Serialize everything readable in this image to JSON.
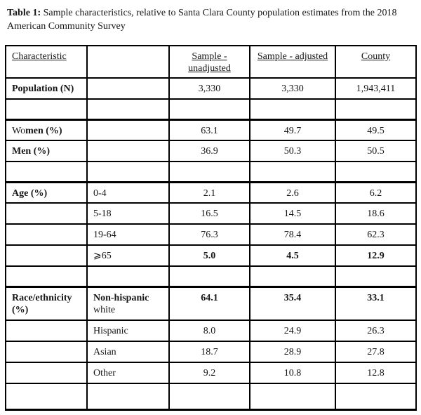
{
  "caption": {
    "label": "Table 1:",
    "text": " Sample characteristics, relative to Santa Clara County population estimates from the 2018 American Community Survey"
  },
  "table": {
    "columns": [
      "Characteristic",
      "",
      "Sample - unadjusted",
      "Sample - adjusted",
      "County"
    ],
    "rows": [
      {
        "kind": "header",
        "cells": [
          {
            "u": true,
            "segs": [
              {
                "t": "Characteristic"
              }
            ]
          },
          {
            "segs": []
          },
          {
            "u": true,
            "segs": [
              {
                "t": "Sample -"
              },
              {
                "t": "unadjusted",
                "br": true
              }
            ]
          },
          {
            "u": true,
            "segs": [
              {
                "t": "Sample - adjusted"
              }
            ]
          },
          {
            "u": true,
            "segs": [
              {
                "t": "County"
              }
            ]
          }
        ]
      },
      {
        "kind": "data",
        "cells": [
          {
            "segs": [
              {
                "t": "Population (N)",
                "b": true
              }
            ]
          },
          {
            "segs": []
          },
          {
            "segs": [
              {
                "t": "3,330"
              }
            ]
          },
          {
            "segs": [
              {
                "t": "3,330"
              }
            ]
          },
          {
            "segs": [
              {
                "t": "1,943,411"
              }
            ]
          }
        ]
      },
      {
        "kind": "blank"
      },
      {
        "kind": "data",
        "section": true,
        "cells": [
          {
            "segs": [
              {
                "t": "Wo"
              },
              {
                "t": "men (%)",
                "b": true
              }
            ]
          },
          {
            "segs": []
          },
          {
            "segs": [
              {
                "t": "63.1"
              }
            ]
          },
          {
            "segs": [
              {
                "t": "49.7"
              }
            ]
          },
          {
            "segs": [
              {
                "t": "49.5"
              }
            ]
          }
        ]
      },
      {
        "kind": "data",
        "cells": [
          {
            "segs": [
              {
                "t": "Men (%)",
                "b": true
              }
            ]
          },
          {
            "segs": []
          },
          {
            "segs": [
              {
                "t": "36.9"
              }
            ]
          },
          {
            "segs": [
              {
                "t": "50.3"
              }
            ]
          },
          {
            "segs": [
              {
                "t": "50.5"
              }
            ]
          }
        ]
      },
      {
        "kind": "blank"
      },
      {
        "kind": "data",
        "section": true,
        "cells": [
          {
            "segs": [
              {
                "t": "Age (%)",
                "b": true
              }
            ]
          },
          {
            "segs": [
              {
                "t": "0-4"
              }
            ]
          },
          {
            "segs": [
              {
                "t": "2.1"
              }
            ]
          },
          {
            "segs": [
              {
                "t": "2.6"
              }
            ]
          },
          {
            "segs": [
              {
                "t": "6.2"
              }
            ]
          }
        ]
      },
      {
        "kind": "data",
        "cells": [
          {
            "segs": []
          },
          {
            "segs": [
              {
                "t": "5-18"
              }
            ]
          },
          {
            "segs": [
              {
                "t": "16.5"
              }
            ]
          },
          {
            "segs": [
              {
                "t": "14.5"
              }
            ]
          },
          {
            "segs": [
              {
                "t": "18.6"
              }
            ]
          }
        ]
      },
      {
        "kind": "data",
        "cells": [
          {
            "segs": []
          },
          {
            "segs": [
              {
                "t": "19-64"
              }
            ]
          },
          {
            "segs": [
              {
                "t": "76.3"
              }
            ]
          },
          {
            "segs": [
              {
                "t": "78.4"
              }
            ]
          },
          {
            "segs": [
              {
                "t": "62.3"
              }
            ]
          }
        ]
      },
      {
        "kind": "data",
        "cells": [
          {
            "segs": []
          },
          {
            "segs": [
              {
                "t": "⩾65"
              }
            ]
          },
          {
            "segs": [
              {
                "t": "5.0",
                "b": true
              }
            ]
          },
          {
            "segs": [
              {
                "t": "4.5",
                "b": true
              }
            ]
          },
          {
            "segs": [
              {
                "t": "12.9",
                "b": true
              }
            ]
          }
        ]
      },
      {
        "kind": "blank"
      },
      {
        "kind": "data",
        "section": true,
        "tall": true,
        "cells": [
          {
            "segs": [
              {
                "t": "Race/ethnicity (%)",
                "b": true
              }
            ]
          },
          {
            "segs": [
              {
                "t": "Non-hispanic",
                "b": true
              },
              {
                "t": "white",
                "br": true
              }
            ]
          },
          {
            "segs": [
              {
                "t": "64.1",
                "b": true
              }
            ]
          },
          {
            "segs": [
              {
                "t": "35.4",
                "b": true
              }
            ]
          },
          {
            "segs": [
              {
                "t": "33.1",
                "b": true
              }
            ]
          }
        ]
      },
      {
        "kind": "data",
        "cells": [
          {
            "segs": []
          },
          {
            "segs": [
              {
                "t": "Hispanic"
              }
            ]
          },
          {
            "segs": [
              {
                "t": "8.0"
              }
            ]
          },
          {
            "segs": [
              {
                "t": "24.9"
              }
            ]
          },
          {
            "segs": [
              {
                "t": "26.3"
              }
            ]
          }
        ]
      },
      {
        "kind": "data",
        "cells": [
          {
            "segs": []
          },
          {
            "segs": [
              {
                "t": "Asian"
              }
            ]
          },
          {
            "segs": [
              {
                "t": "18.7"
              }
            ]
          },
          {
            "segs": [
              {
                "t": "28.9"
              }
            ]
          },
          {
            "segs": [
              {
                "t": "27.8"
              }
            ]
          }
        ]
      },
      {
        "kind": "data",
        "cells": [
          {
            "segs": []
          },
          {
            "segs": [
              {
                "t": "Other"
              }
            ]
          },
          {
            "segs": [
              {
                "t": "9.2"
              }
            ]
          },
          {
            "segs": [
              {
                "t": "10.8"
              }
            ]
          },
          {
            "segs": [
              {
                "t": "12.8"
              }
            ]
          }
        ]
      },
      {
        "kind": "blank",
        "last": true
      }
    ]
  }
}
